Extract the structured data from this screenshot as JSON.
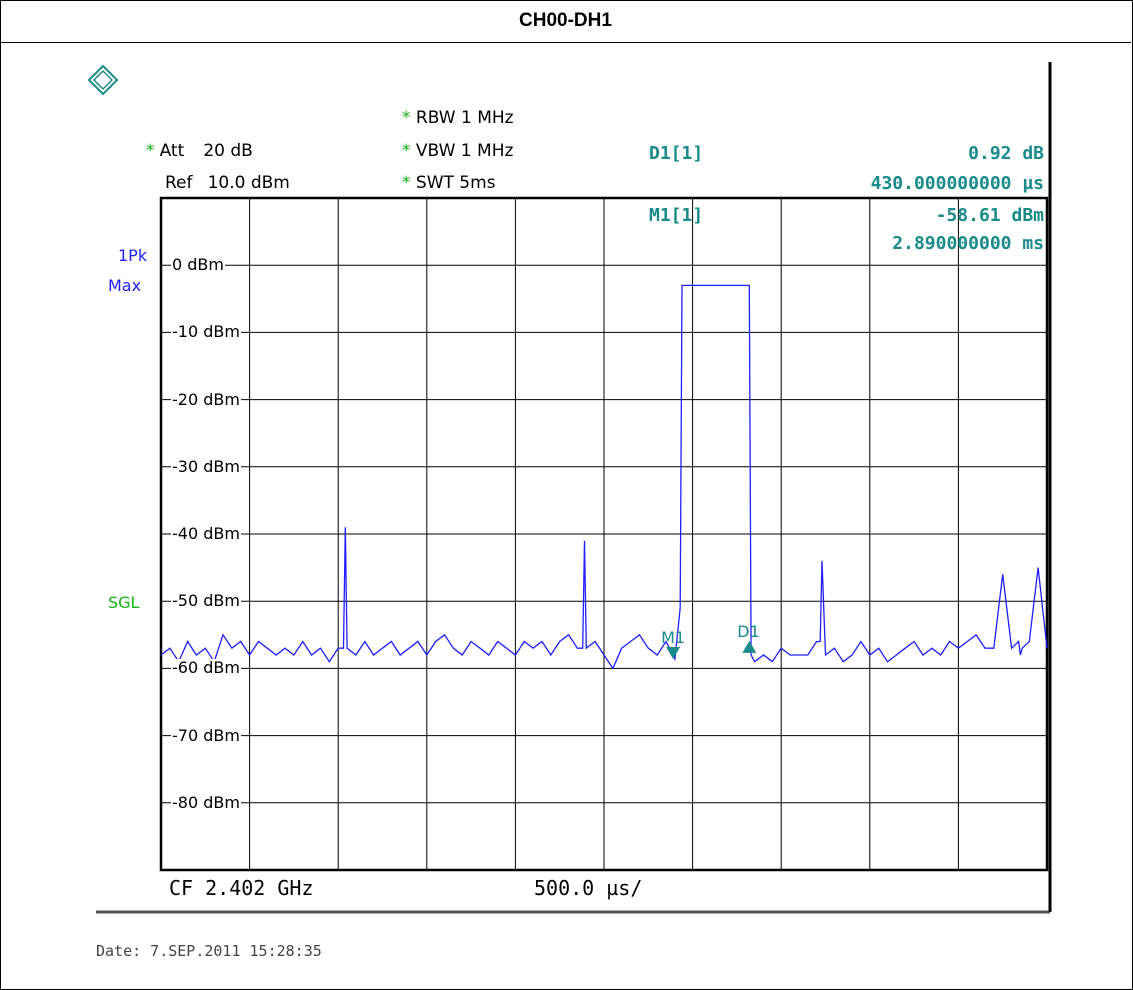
{
  "title": "CH00-DH1",
  "settings": {
    "rbw": "RBW 1 MHz",
    "vbw": "VBW 1 MHz",
    "swt": "SWT 5ms",
    "att_label": "Att",
    "att_value": "20 dB",
    "ref_label": "Ref",
    "ref_value": "10.0 dBm",
    "star": "*"
  },
  "trace_mode": {
    "line1": "1Pk",
    "line2": "Max"
  },
  "sweep_mode": "SGL",
  "markers_readout": {
    "d1_label": "D1[1]",
    "d1_value": "0.92 dB",
    "d1_time": "430.000000000 µs",
    "m1_label": "M1[1]",
    "m1_value": "-58.61 dBm",
    "m1_time": "2.890000000 ms"
  },
  "bottom": {
    "cf": "CF 2.402 GHz",
    "span": "500.0 µs/"
  },
  "date": "Date: 7.SEP.2011  15:28:35",
  "colors": {
    "trace": "#1e1eff",
    "marker": "#1a8a8a",
    "star": "#14b414",
    "grid": "#000000"
  },
  "chart_data": {
    "type": "line",
    "title": "CH00-DH1",
    "xlabel": "",
    "ylabel": "",
    "xlim": [
      0,
      5
    ],
    "ylim": [
      -90,
      10
    ],
    "x_unit": "ms",
    "y_unit": "dBm",
    "grid": true,
    "y_ticks": [
      "0 dBm",
      "-10 dBm",
      "-20 dBm",
      "-30 dBm",
      "-40 dBm",
      "-50 dBm",
      "-60 dBm",
      "-70 dBm",
      "-80 dBm"
    ],
    "y_tick_values": [
      0,
      -10,
      -20,
      -30,
      -40,
      -50,
      -60,
      -70,
      -80
    ],
    "series": [
      {
        "x": [
          0,
          0.05,
          0.1,
          0.15,
          0.2,
          0.25,
          0.3,
          0.35,
          0.4,
          0.45,
          0.5,
          0.55,
          0.6,
          0.65,
          0.7,
          0.75,
          0.8,
          0.85,
          0.9,
          0.95,
          1.0,
          1.03,
          1.04,
          1.05,
          1.1,
          1.15,
          1.2,
          1.25,
          1.3,
          1.35,
          1.4,
          1.45,
          1.5,
          1.55,
          1.6,
          1.65,
          1.7,
          1.75,
          1.8,
          1.85,
          1.9,
          1.95,
          2.0,
          2.05,
          2.1,
          2.15,
          2.2,
          2.25,
          2.3,
          2.35,
          2.38,
          2.39,
          2.4,
          2.45,
          2.5,
          2.55,
          2.6,
          2.65,
          2.7,
          2.75,
          2.8,
          2.85,
          2.9,
          2.93,
          2.94,
          2.95,
          3.0,
          3.05,
          3.1,
          3.15,
          3.2,
          3.25,
          3.3,
          3.32,
          3.33,
          3.35,
          3.4,
          3.45,
          3.5,
          3.55,
          3.6,
          3.65,
          3.7,
          3.72,
          3.73,
          3.75,
          3.8,
          3.85,
          3.9,
          3.95,
          4.0,
          4.05,
          4.1,
          4.15,
          4.2,
          4.25,
          4.3,
          4.35,
          4.4,
          4.45,
          4.5,
          4.55,
          4.6,
          4.65,
          4.7,
          4.75,
          4.8,
          4.84,
          4.85,
          4.86,
          4.9,
          4.95,
          5.0
        ],
        "y": [
          -58,
          -57,
          -59,
          -56,
          -58,
          -57,
          -59,
          -55,
          -57,
          -56,
          -58,
          -56,
          -57,
          -58,
          -57,
          -58,
          -56,
          -58,
          -57,
          -59,
          -57,
          -57,
          -39,
          -57,
          -58,
          -56,
          -58,
          -57,
          -56,
          -58,
          -57,
          -56,
          -58,
          -56,
          -55,
          -57,
          -58,
          -56,
          -57,
          -58,
          -56,
          -57,
          -58,
          -56,
          -57,
          -56,
          -58,
          -56,
          -55,
          -57,
          -57,
          -41,
          -57,
          -56,
          -58,
          -60,
          -57,
          -56,
          -55,
          -57,
          -58,
          -56,
          -58.6,
          -51,
          -3,
          -3,
          -3,
          -3,
          -3,
          -3,
          -3,
          -3,
          -3,
          -3,
          -58,
          -59,
          -58,
          -59,
          -57,
          -58,
          -58,
          -58,
          -56,
          -56,
          -44,
          -58,
          -57,
          -59,
          -58,
          -56,
          -58,
          -57,
          -59,
          -58,
          -57,
          -56,
          -58,
          -57,
          -58,
          -56,
          -57,
          -56,
          -55,
          -57,
          -57,
          -46,
          -57,
          -56,
          -58,
          -57,
          -56,
          -45,
          -57
        ],
        "markers": [
          {
            "label": "M1",
            "x": 2.89,
            "y": -58.61
          },
          {
            "label": "D1",
            "x": 3.32,
            "y": -57.69
          }
        ]
      }
    ]
  }
}
